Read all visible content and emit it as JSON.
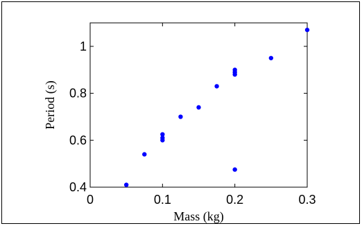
{
  "chart_data": {
    "type": "scatter",
    "title": "",
    "xlabel": "Mass (kg)",
    "ylabel": "Period (s)",
    "xlim": [
      0,
      0.3
    ],
    "ylim": [
      0.4,
      1.1
    ],
    "xticks": [
      0,
      0.1,
      0.2,
      0.3
    ],
    "xtick_labels": [
      "0",
      "0.1",
      "0.2",
      "0.3"
    ],
    "yticks": [
      0.4,
      0.6,
      0.8,
      1.0
    ],
    "ytick_labels": [
      "0.4",
      "0.6",
      "0.8",
      "1"
    ],
    "grid": false,
    "marker_color": "#0000ff",
    "points": [
      {
        "x": 0.05,
        "y": 0.41
      },
      {
        "x": 0.075,
        "y": 0.54
      },
      {
        "x": 0.1,
        "y": 0.6
      },
      {
        "x": 0.1,
        "y": 0.61
      },
      {
        "x": 0.1,
        "y": 0.625
      },
      {
        "x": 0.125,
        "y": 0.7
      },
      {
        "x": 0.15,
        "y": 0.74
      },
      {
        "x": 0.175,
        "y": 0.83
      },
      {
        "x": 0.2,
        "y": 0.475
      },
      {
        "x": 0.2,
        "y": 0.88
      },
      {
        "x": 0.2,
        "y": 0.89
      },
      {
        "x": 0.2,
        "y": 0.9
      },
      {
        "x": 0.25,
        "y": 0.95
      },
      {
        "x": 0.3,
        "y": 1.07
      }
    ]
  }
}
